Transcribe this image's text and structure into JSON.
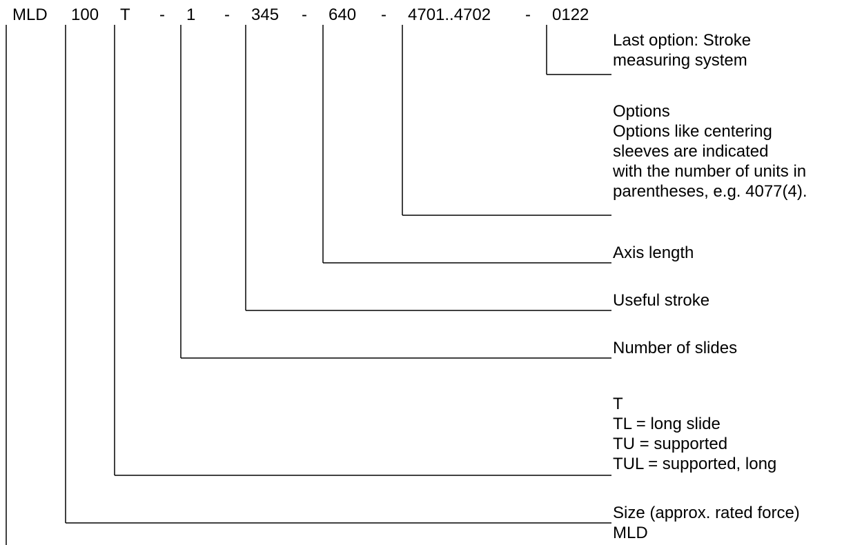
{
  "code": {
    "parts": [
      "MLD",
      "100",
      "T",
      "-",
      "1",
      "-",
      "345",
      "-",
      "640",
      "-",
      "4701..4702",
      "-",
      "0122"
    ]
  },
  "descriptions": {
    "stroke_measuring": [
      "Last option: Stroke",
      "measuring system"
    ],
    "options": [
      "Options",
      "Options like centering",
      "sleeves are indicated",
      "with the number of units in",
      "parentheses, e.g. 4077(4)."
    ],
    "axis_length": [
      "Axis length"
    ],
    "useful_stroke": [
      "Useful stroke"
    ],
    "number_of_slides": [
      "Number of slides"
    ],
    "type": [
      "T",
      "TL = long slide",
      "TU = supported",
      "TUL = supported, long"
    ],
    "size": [
      "Size (approx. rated force)",
      "MLD"
    ]
  }
}
